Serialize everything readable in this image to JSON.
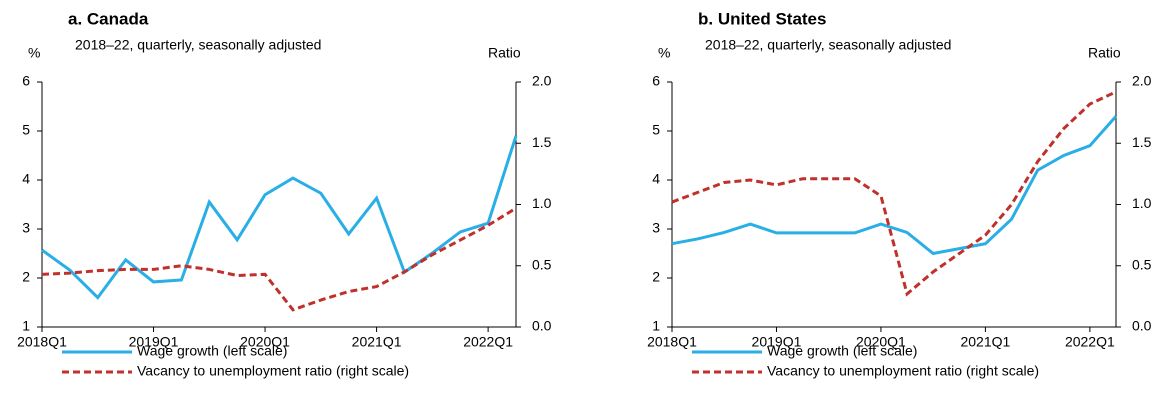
{
  "chart_data": [
    {
      "type": "line",
      "title": "a. Canada",
      "subtitle": "2018–22, quarterly, seasonally adjusted",
      "y_label": "%",
      "y2_label": "Ratio",
      "categories": [
        "2018Q1",
        null,
        null,
        null,
        "2019Q1",
        null,
        null,
        null,
        "2020Q1",
        null,
        null,
        null,
        "2021Q1",
        null,
        null,
        null,
        "2022Q1",
        null
      ],
      "ylim": [
        1,
        6
      ],
      "yticks": [
        1,
        2,
        3,
        4,
        5,
        6
      ],
      "y2lim": [
        0,
        2
      ],
      "y2ticks": [
        {
          "value": 0,
          "label": "0.0"
        },
        0.5,
        {
          "value": 1,
          "label": "1.0"
        },
        1.5,
        {
          "value": 2,
          "label": "2.0"
        }
      ],
      "series": [
        {
          "name": "Wage growth (left scale)",
          "color": "#29aee6",
          "values": [
            2.57,
            2.16,
            1.6,
            2.37,
            1.92,
            1.96,
            3.55,
            2.78,
            3.7,
            4.04,
            3.73,
            2.9,
            3.63,
            2.12,
            2.51,
            2.94,
            3.12,
            4.9
          ]
        },
        {
          "name": "Vacancy to unemployment ratio (right scale)",
          "color": "#c0312b",
          "dashed": true,
          "axis": "y2",
          "values": [
            0.43,
            0.44,
            0.46,
            0.47,
            0.47,
            0.5,
            0.47,
            0.42,
            0.43,
            0.14,
            0.22,
            0.29,
            0.33,
            0.45,
            0.59,
            0.71,
            0.83,
            0.97
          ]
        }
      ]
    },
    {
      "type": "line",
      "title": "b. United States",
      "subtitle": "2018–22, quarterly, seasonally adjusted",
      "y_label": "%",
      "y2_label": "Ratio",
      "categories": [
        "2018Q1",
        null,
        null,
        null,
        "2019Q1",
        null,
        null,
        null,
        "2020Q1",
        null,
        null,
        null,
        "2021Q1",
        null,
        null,
        null,
        "2022Q1",
        null
      ],
      "ylim": [
        1,
        6
      ],
      "yticks": [
        1,
        2,
        3,
        4,
        5,
        6
      ],
      "y2lim": [
        0,
        2
      ],
      "y2ticks": [
        {
          "value": 0,
          "label": "0.0"
        },
        0.5,
        {
          "value": 1,
          "label": "1.0"
        },
        1.5,
        {
          "value": 2,
          "label": "2.0"
        }
      ],
      "series": [
        {
          "name": "Wage growth (left scale)",
          "color": "#29aee6",
          "values": [
            2.7,
            2.8,
            2.93,
            3.1,
            2.92,
            2.92,
            2.92,
            2.92,
            3.1,
            2.93,
            2.5,
            2.6,
            2.7,
            3.2,
            4.2,
            4.5,
            4.7,
            5.3
          ]
        },
        {
          "name": "Vacancy to unemployment ratio (right scale)",
          "color": "#c0312b",
          "dashed": true,
          "axis": "y2",
          "values": [
            1.02,
            1.1,
            1.18,
            1.2,
            1.16,
            1.21,
            1.21,
            1.21,
            1.07,
            0.27,
            0.45,
            0.6,
            0.75,
            1.0,
            1.35,
            1.62,
            1.82,
            1.92
          ]
        }
      ]
    }
  ]
}
